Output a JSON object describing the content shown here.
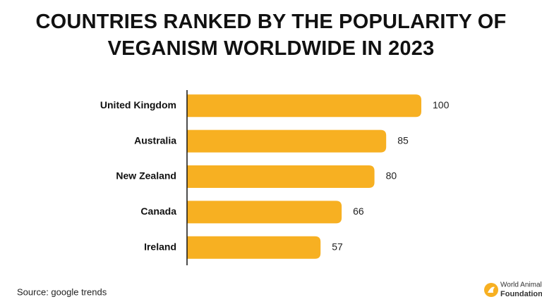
{
  "chart_data": {
    "type": "bar",
    "orientation": "horizontal",
    "title": "COUNTRIES RANKED BY THE POPULARITY OF VEGANISM WORLDWIDE IN 2023",
    "categories": [
      "United Kingdom",
      "Australia",
      "New Zealand",
      "Canada",
      "Ireland"
    ],
    "values": [
      100,
      85,
      80,
      66,
      57
    ],
    "color": "#f7b022",
    "source": "Source: google trends"
  },
  "logo": {
    "lines": [
      "World Animal",
      "Foundation"
    ]
  }
}
